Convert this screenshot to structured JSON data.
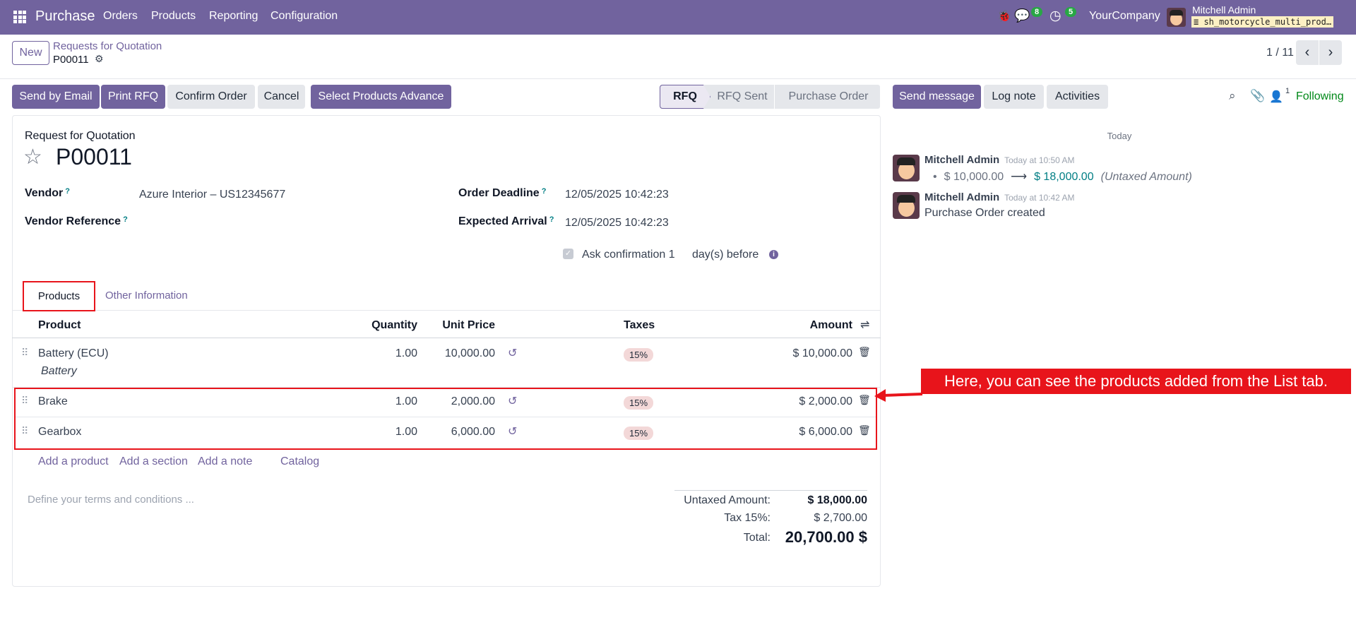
{
  "navbar": {
    "app": "Purchase",
    "menu": [
      "Orders",
      "Products",
      "Reporting",
      "Configuration"
    ],
    "messages_count": "8",
    "activities_count": "5",
    "company": "YourCompany",
    "user": "Mitchell Admin",
    "database": "sh_motorcycle_multi_prod…"
  },
  "breadcrumb": {
    "new_label": "New",
    "parent": "Requests for Quotation",
    "current": "P00011"
  },
  "pager": {
    "text": "1 / 11"
  },
  "actions": [
    "Send by Email",
    "Print RFQ",
    "Confirm Order",
    "Cancel",
    "Select Products Advance"
  ],
  "status": {
    "steps": [
      "RFQ",
      "RFQ Sent",
      "Purchase Order"
    ],
    "active": "RFQ"
  },
  "chatter_buttons": [
    "Send message",
    "Log note",
    "Activities"
  ],
  "followers": {
    "count": "1",
    "following": "Following"
  },
  "form": {
    "subtitle": "Request for Quotation",
    "name": "P00011",
    "vendor_label": "Vendor",
    "vendor": "Azure Interior – US12345677",
    "vendor_ref_label": "Vendor Reference",
    "deadline_label": "Order Deadline",
    "deadline": "12/05/2025 10:42:23",
    "arrival_label": "Expected Arrival",
    "arrival": "12/05/2025 10:42:23",
    "ask_confirmation": "Ask confirmation 1",
    "days_before": "day(s) before",
    "q": "?"
  },
  "tabs": [
    "Products",
    "Other Information"
  ],
  "table": {
    "headers": [
      "Product",
      "Quantity",
      "Unit Price",
      "Taxes",
      "Amount"
    ],
    "rows": [
      {
        "product": "Battery (ECU)",
        "description": "Battery",
        "qty": "1.00",
        "price": "10,000.00",
        "tax": "15%",
        "amount": "$ 10,000.00"
      },
      {
        "product": "Brake",
        "qty": "1.00",
        "price": "2,000.00",
        "tax": "15%",
        "amount": "$ 2,000.00"
      },
      {
        "product": "Gearbox",
        "qty": "1.00",
        "price": "6,000.00",
        "tax": "15%",
        "amount": "$ 6,000.00"
      }
    ],
    "add_links": [
      "Add a product",
      "Add a section",
      "Add a note",
      "Catalog"
    ]
  },
  "terms_placeholder": "Define your terms and conditions ...",
  "totals": {
    "untaxed_label": "Untaxed Amount:",
    "untaxed": "$ 18,000.00",
    "tax_label": "Tax 15%:",
    "tax": "$ 2,700.00",
    "total_label": "Total:",
    "total": "$ 20,700.00"
  },
  "chatter": {
    "date": "Today",
    "messages": [
      {
        "author": "Mitchell Admin",
        "time": "Today at 10:50 AM",
        "old": "$ 10,000.00",
        "new": "$ 18,000.00",
        "field": "(Untaxed Amount)"
      },
      {
        "author": "Mitchell Admin",
        "time": "Today at 10:42 AM",
        "body": "Purchase Order created"
      }
    ]
  },
  "annotation": "Here, you can see the products added from the List tab.",
  "colors": {
    "brand": "#71639e",
    "highlight": "#e8141b",
    "following": "#008818"
  }
}
